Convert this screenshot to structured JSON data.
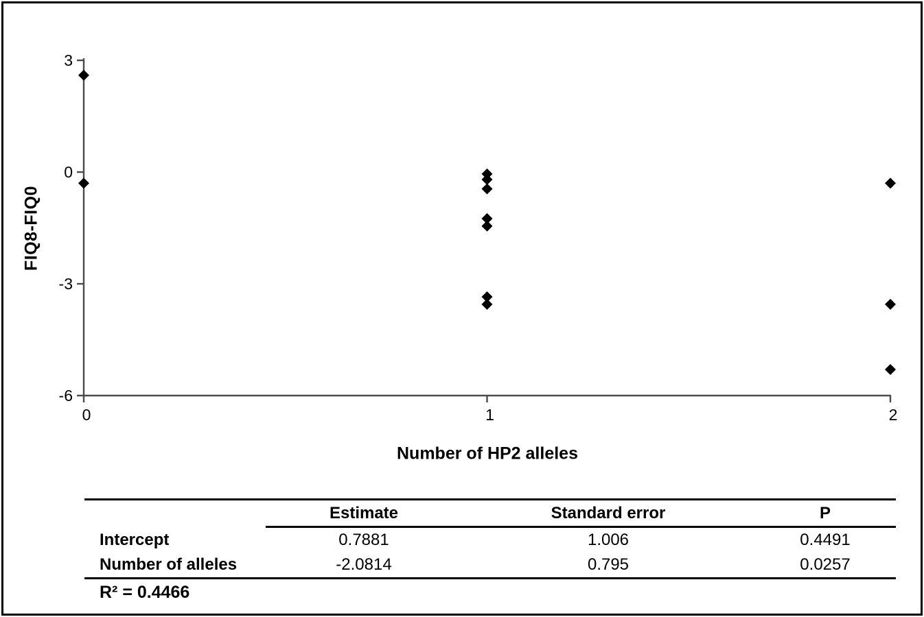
{
  "figure": {
    "background": "#ffffff",
    "border_color": "#000000",
    "axis_color": "#4a4a4a",
    "marker_color": "#000000"
  },
  "chart_data": {
    "type": "scatter",
    "title": "",
    "xlabel": "Number of HP2 alleles",
    "ylabel": "FIQ8-FIQ0",
    "xlim": [
      0,
      2
    ],
    "ylim": [
      -6,
      3
    ],
    "x_ticks": [
      "0",
      "1",
      "2"
    ],
    "x_tick_values": [
      0,
      1,
      2
    ],
    "y_ticks": [
      "3",
      "0",
      "-3",
      "-6"
    ],
    "y_tick_values": [
      3,
      0,
      -3,
      -6
    ],
    "grid": false,
    "legend": false,
    "marker": "diamond",
    "points": [
      {
        "x": 0,
        "y": 2.6
      },
      {
        "x": 0,
        "y": -0.3
      },
      {
        "x": 1,
        "y": -0.05
      },
      {
        "x": 1,
        "y": -0.2
      },
      {
        "x": 1,
        "y": -0.45
      },
      {
        "x": 1,
        "y": -1.25
      },
      {
        "x": 1,
        "y": -1.45
      },
      {
        "x": 1,
        "y": -3.35
      },
      {
        "x": 1,
        "y": -3.55
      },
      {
        "x": 2,
        "y": -0.3
      },
      {
        "x": 2,
        "y": -3.55
      },
      {
        "x": 2,
        "y": -5.3
      }
    ]
  },
  "stats_table": {
    "columns": [
      "",
      "Estimate",
      "Standard error",
      "P"
    ],
    "rows": [
      {
        "label": "Intercept",
        "estimate": "0.7881",
        "standard_error": "1.006",
        "p": "0.4491"
      },
      {
        "label": "Number of alleles",
        "estimate": "-2.0814",
        "standard_error": "0.795",
        "p": "0.0257"
      }
    ],
    "r_squared_label": "R² = 0.4466"
  }
}
